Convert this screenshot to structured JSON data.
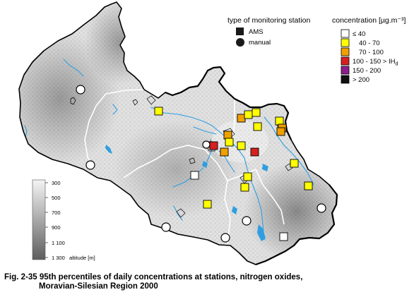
{
  "legend_type": {
    "title": "type of monitoring station",
    "items": [
      {
        "label": "AMS",
        "symbol": "square",
        "color": "#1a1a1a"
      },
      {
        "label": "manual",
        "symbol": "circle",
        "color": "#1a1a1a"
      }
    ]
  },
  "legend_concentration": {
    "title": "concentration [µg.m⁻³]",
    "classes": [
      {
        "label": "≤ 40",
        "color": "#ffffff"
      },
      {
        "label": "40 - 70",
        "color": "#ffff00"
      },
      {
        "label": "70 - 100",
        "color": "#f0a000"
      },
      {
        "label": "100 - 150 > IH",
        "sub": "d",
        "color": "#d42020"
      },
      {
        "label": "150 - 200",
        "color": "#8b1e8b"
      },
      {
        "label": "> 200",
        "color": "#111111"
      }
    ]
  },
  "altitude_scale": {
    "labels": [
      "300",
      "500",
      "700",
      "900",
      "1 100",
      "1 300"
    ],
    "title": "altitude [m]"
  },
  "caption": {
    "line1": "Fig. 2-35  95th percentiles of daily concentrations at stations, nitrogen oxides,",
    "line2": "Moravian-Silesian Region 2000"
  },
  "colors": {
    "river": "#2f9ee0",
    "border": "#000000",
    "district_border": "#ffffff"
  }
}
